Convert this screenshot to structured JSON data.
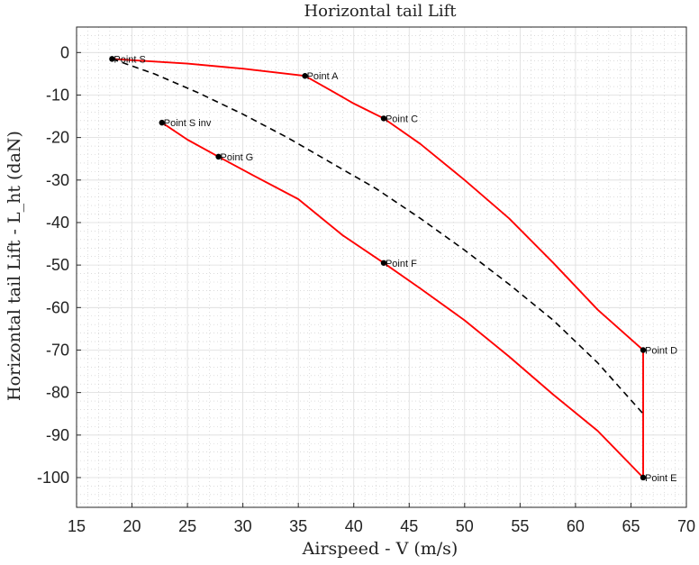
{
  "chart_data": {
    "type": "line",
    "title": "Horizontal tail Lift",
    "xlabel": "Airspeed - V (m/s)",
    "ylabel": "Horizontal tail Lift - L_ht (daN)",
    "xlim": [
      15,
      70
    ],
    "ylim": [
      -107,
      6
    ],
    "xticks": [
      15,
      20,
      25,
      30,
      35,
      40,
      45,
      50,
      55,
      60,
      65,
      70
    ],
    "yticks": [
      0,
      -10,
      -20,
      -30,
      -40,
      -50,
      -60,
      -70,
      -80,
      -90,
      -100
    ],
    "grid": true,
    "minor_grid": true,
    "series": [
      {
        "style": "solid",
        "color": "#ff0000",
        "x": [
          18.2,
          25,
          30,
          35.6,
          38,
          40,
          42.7
        ],
        "y": [
          -1.5,
          -2.6,
          -3.8,
          -5.5,
          -9,
          -12,
          -15.5
        ]
      },
      {
        "style": "solid",
        "color": "#ff0000",
        "x": [
          42.7,
          46,
          50,
          54,
          58,
          62,
          66.1,
          66.1
        ],
        "y": [
          -15.5,
          -21.5,
          -30,
          -39,
          -49.5,
          -60.5,
          -70,
          -100
        ]
      },
      {
        "style": "solid",
        "color": "#ff0000",
        "x": [
          22.7,
          25,
          27.8,
          31,
          35,
          39,
          42.7
        ],
        "y": [
          -16.5,
          -20.5,
          -24.5,
          -29,
          -34.5,
          -43,
          -49.5
        ]
      },
      {
        "style": "solid",
        "color": "#ff0000",
        "x": [
          42.7,
          46,
          50,
          54,
          58,
          62,
          66.1
        ],
        "y": [
          -49.5,
          -55.5,
          -63,
          -71.5,
          -80.5,
          -89,
          -100
        ]
      },
      {
        "style": "dashed",
        "color": "#000000",
        "x": [
          18.2,
          22,
          26,
          30,
          34,
          38,
          42,
          46,
          50,
          54,
          58,
          62,
          66.1
        ],
        "y": [
          -1.5,
          -5,
          -9.5,
          -14.5,
          -20,
          -26,
          -32,
          -39,
          -46.5,
          -54.5,
          -63,
          -73,
          -85
        ]
      }
    ],
    "points": [
      {
        "label": "Point S",
        "x": 18.2,
        "y": -1.5
      },
      {
        "label": "Point A",
        "x": 35.6,
        "y": -5.5
      },
      {
        "label": "Point C",
        "x": 42.7,
        "y": -15.5
      },
      {
        "label": "Point S inv",
        "x": 22.7,
        "y": -16.5
      },
      {
        "label": "Point G",
        "x": 27.8,
        "y": -24.5
      },
      {
        "label": "Point F",
        "x": 42.7,
        "y": -49.5
      },
      {
        "label": "Point D",
        "x": 66.1,
        "y": -70
      },
      {
        "label": "Point E",
        "x": 66.1,
        "y": -100
      }
    ]
  }
}
